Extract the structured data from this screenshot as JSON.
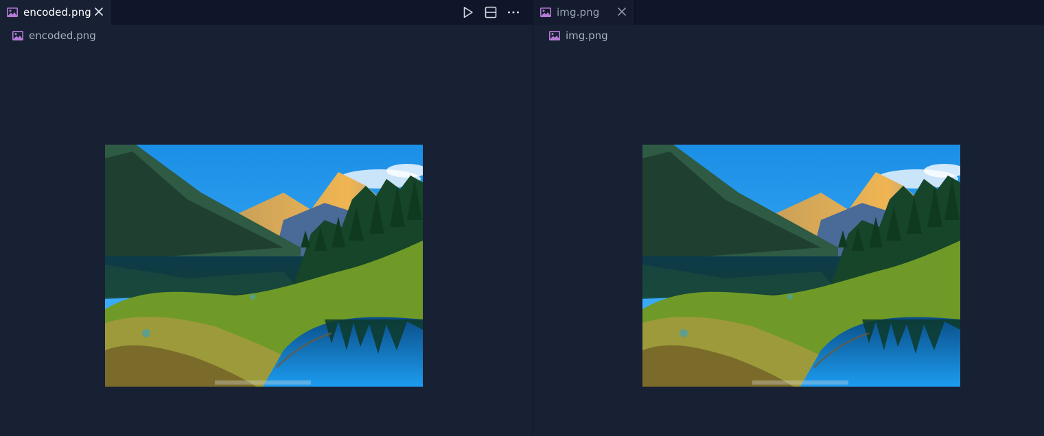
{
  "left_group": {
    "tab": {
      "label": "encoded.png",
      "icon": "image-file-icon"
    },
    "breadcrumb": {
      "label": "encoded.png",
      "icon": "image-file-icon"
    },
    "actions": [
      "run-icon",
      "split-editor-icon",
      "more-actions-icon"
    ],
    "image": {
      "subject": "mountain-lake-landscape"
    }
  },
  "right_group": {
    "tab": {
      "label": "img.png",
      "icon": "image-file-icon"
    },
    "breadcrumb": {
      "label": "img.png",
      "icon": "image-file-icon"
    },
    "image": {
      "subject": "mountain-lake-landscape"
    }
  },
  "colors": {
    "editor_background": "#182033",
    "tabbar_background": "#0f1629",
    "image_file_icon": "#b57bd6"
  }
}
